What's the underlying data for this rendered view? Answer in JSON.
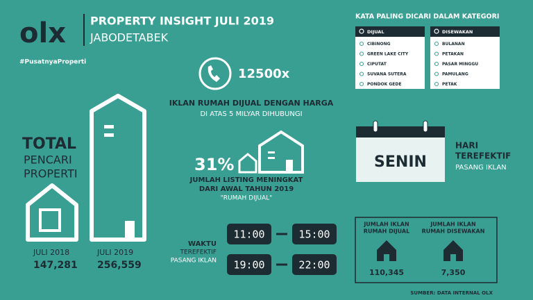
{
  "header": {
    "logo": "olx",
    "title": "PROPERTY INSIGHT JULI 2019",
    "region": "JABODETABEK",
    "hashtag": "#PusatnyaProperti"
  },
  "total": {
    "label_lines": [
      "TOTAL",
      "PENCARI",
      "PROPERTI"
    ],
    "years": [
      {
        "label": "JULI 2018",
        "value": "147,281"
      },
      {
        "label": "JULI 2019",
        "value": "256,559"
      }
    ]
  },
  "calls": {
    "count": "12500x",
    "lines": [
      "IKLAN RUMAH DIJUAL DENGAN HARGA",
      "DI ATAS 5 MILYAR DIHUBUNGI"
    ]
  },
  "listing": {
    "percent": "31%",
    "lines": [
      "JUMLAH LISTING MENINGKAT",
      "DARI AWAL TAHUN 2019",
      "\"RUMAH DIJUAL\""
    ]
  },
  "times": {
    "label_lines": [
      "WAKTU",
      "TEREFEKTIF",
      "PASANG IKLAN"
    ],
    "slots": [
      [
        "11:00",
        "15:00"
      ],
      [
        "19:00",
        "22:00"
      ]
    ]
  },
  "keywords": {
    "title": "KATA PALING DICARI DALAM KATEGORI",
    "columns": [
      {
        "heading": "DIJUAL",
        "items": [
          "CIBINONG",
          "GREEN LAKE CITY",
          "CIPUTAT",
          "SUVANA SUTERA",
          "PONDOK GEDE"
        ]
      },
      {
        "heading": "DISEWAKAN",
        "items": [
          "BULANAN",
          "PETAKAN",
          "PASAR MINGGU",
          "PAMULANG",
          "PETAK"
        ]
      }
    ]
  },
  "best_day": {
    "day": "SENIN",
    "lines": [
      "HARI",
      "TEREFEKTIF",
      "PASANG IKLAN"
    ]
  },
  "counts": [
    {
      "label_lines": [
        "JUMLAH IKLAN",
        "RUMAH DIJUAL"
      ],
      "value": "110,345"
    },
    {
      "label_lines": [
        "JUMLAH IKLAN",
        "RUMAH DISEWAKAN"
      ],
      "value": "7,350"
    }
  ],
  "source": "SUMBER: DATA INTERNAL OLX"
}
